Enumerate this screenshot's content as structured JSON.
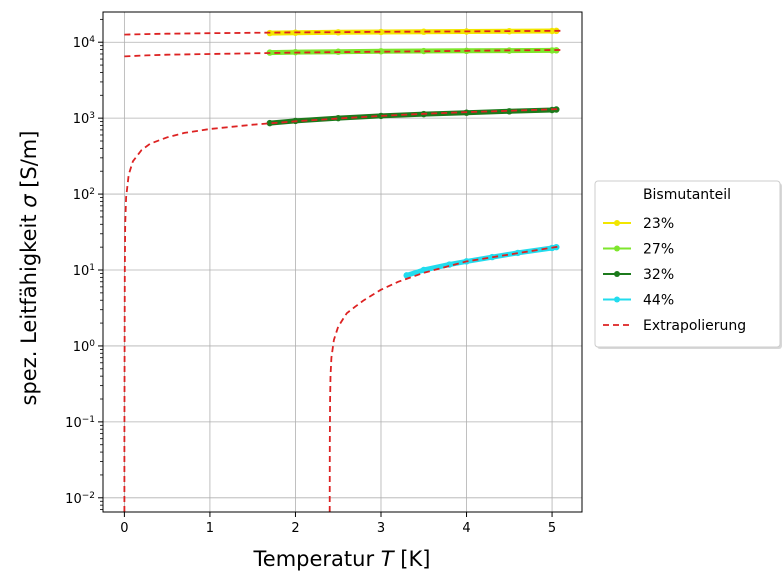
{
  "chart_data": {
    "type": "line",
    "xlabel": "Temperatur T [K]",
    "xlabel_main": "Temperatur ",
    "xlabel_var": "T",
    "xlabel_unit": " [K]",
    "ylabel": "spez. Leitfähigkeit σ [S/m]",
    "ylabel_main": "spez. Leitfähigkeit ",
    "ylabel_var": "σ",
    "ylabel_unit": " [S/m]",
    "xlim": [
      -0.25,
      5.35
    ],
    "ylim": [
      0.0065,
      25000
    ],
    "yscale": "log",
    "grid": true,
    "x_ticks": [
      0,
      1,
      2,
      3,
      4,
      5
    ],
    "x_tick_labels": [
      "0",
      "1",
      "2",
      "3",
      "4",
      "5"
    ],
    "y_ticks": [
      0.01,
      0.1,
      1,
      10,
      100,
      1000,
      10000
    ],
    "y_tick_bases": [
      "10",
      "10",
      "10",
      "10",
      "10",
      "10",
      "10"
    ],
    "y_tick_exponents": [
      "−2",
      "−1",
      "0",
      "1",
      "2",
      "3",
      "4"
    ],
    "legend": {
      "title": "Bismutanteil",
      "placement": "outside-right"
    },
    "series": [
      {
        "name": "23%",
        "color": "#f2e600",
        "marker": "dot",
        "x": [
          1.7,
          2.0,
          2.5,
          3.0,
          3.5,
          4.0,
          4.5,
          5.0,
          5.05
        ],
        "y": [
          13200,
          13350,
          13500,
          13650,
          13750,
          13850,
          13950,
          14050,
          14100
        ]
      },
      {
        "name": "27%",
        "color": "#7ee62c",
        "marker": "dot",
        "x": [
          1.7,
          2.0,
          2.5,
          3.0,
          3.5,
          4.0,
          4.5,
          5.0,
          5.05
        ],
        "y": [
          7300,
          7400,
          7500,
          7600,
          7650,
          7700,
          7750,
          7800,
          7820
        ]
      },
      {
        "name": "32%",
        "color": "#1c7a1c",
        "marker": "dot",
        "x": [
          1.7,
          2.0,
          2.5,
          3.0,
          3.5,
          4.0,
          4.5,
          5.0,
          5.05
        ],
        "y": [
          860,
          920,
          1000,
          1070,
          1130,
          1180,
          1230,
          1280,
          1300
        ]
      },
      {
        "name": "44%",
        "color": "#22dcee",
        "marker": "dot",
        "x": [
          3.3,
          3.5,
          3.8,
          4.0,
          4.3,
          4.6,
          5.0,
          5.05
        ],
        "y": [
          8.5,
          10,
          11.8,
          13,
          14.8,
          16.8,
          19.5,
          20
        ]
      },
      {
        "name": "Extrapolierung",
        "color": "#dd2222",
        "style": "dashed",
        "curves": [
          {
            "x": [
              0.0,
              0.25,
              0.5,
              1.0,
              1.5,
              2.0,
              2.5,
              3.0,
              3.5,
              4.0,
              4.5,
              5.1
            ],
            "y": [
              12600,
              12800,
              12950,
              13150,
              13300,
              13450,
              13550,
              13700,
              13800,
              13900,
              14000,
              14150
            ]
          },
          {
            "x": [
              0.0,
              0.25,
              0.5,
              1.0,
              1.5,
              2.0,
              2.5,
              3.0,
              3.5,
              4.0,
              4.5,
              5.1
            ],
            "y": [
              6500,
              6700,
              6850,
              7000,
              7150,
              7300,
              7400,
              7500,
              7600,
              7700,
              7800,
              7900
            ]
          },
          {
            "x": [
              0.0,
              0.0005,
              0.002,
              0.005,
              0.01,
              0.02,
              0.05,
              0.1,
              0.2,
              0.3,
              0.5,
              0.7,
              1.0,
              1.5,
              2.0,
              2.5,
              3.0,
              3.5,
              4.0,
              4.5,
              5.1
            ],
            "y": [
              0.0065,
              0.05,
              1,
              10,
              40,
              90,
              180,
              270,
              380,
              460,
              560,
              640,
              720,
              820,
              910,
              990,
              1070,
              1140,
              1200,
              1250,
              1320
            ]
          },
          {
            "x": [
              2.4,
              2.401,
              2.405,
              2.41,
              2.42,
              2.45,
              2.5,
              2.6,
              2.7,
              2.8,
              3.0,
              3.2,
              3.5,
              4.0,
              4.5,
              5.1
            ],
            "y": [
              0.0065,
              0.05,
              0.2,
              0.4,
              0.7,
              1.2,
              1.8,
              2.7,
              3.3,
              4.0,
              5.5,
              7.0,
              9.2,
              13,
              16,
              20.5
            ]
          }
        ]
      }
    ]
  }
}
